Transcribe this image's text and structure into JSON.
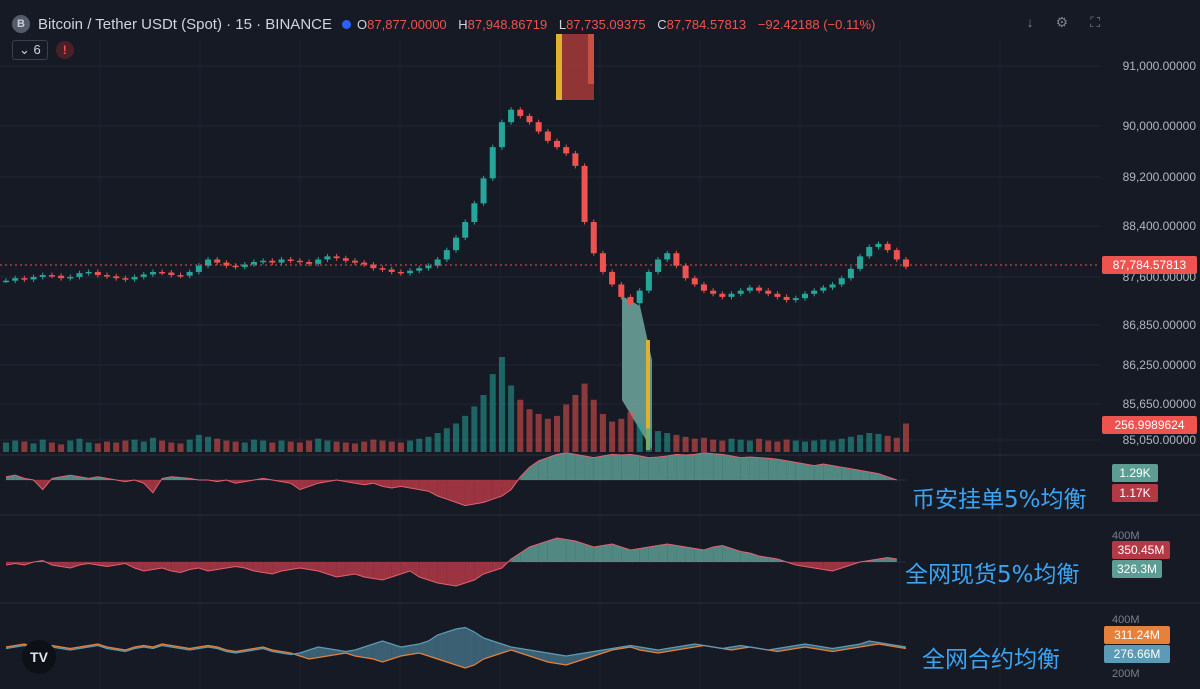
{
  "header": {
    "logo_letter": "B",
    "title": "Bitcoin / Tether USDt (Spot) · 15 · BINANCE",
    "o_label": "O",
    "o_value": "87,877.00000",
    "h_label": "H",
    "h_value": "87,948.86719",
    "l_label": "L",
    "l_value": "87,735.09375",
    "c_label": "C",
    "c_value": "87,784.57813",
    "change": "−92.42188 (−0.11%)",
    "indicators_count": "6",
    "alert_symbol": "!",
    "icon_down": "arrow-down-icon",
    "icon_settings": "settings-icon",
    "icon_fullscreen": "fullscreen-icon"
  },
  "colors": {
    "background": "#161a25",
    "up": "#26a69a",
    "down": "#ef5350",
    "fill_up": "#5c9e93",
    "fill_down": "#b33a45",
    "label_cn": "#3ba4f2",
    "futures_a": "#e5813a",
    "futures_b": "#5b9bb5"
  },
  "price_axis": {
    "ticks": [
      "91,000.00000",
      "90,000.00000",
      "89,200.00000",
      "88,400.00000",
      "87,600.00000",
      "86,850.00000",
      "86,250.00000",
      "85,650.00000",
      "85,050.00000"
    ],
    "current_price": "87,784.57813",
    "volume_label": "256.9989624"
  },
  "panes": {
    "binance": {
      "label_cn": "币安挂单5%均衡",
      "val_up": "1.29K",
      "val_down": "1.17K"
    },
    "spot": {
      "label_cn": "全网现货5%均衡",
      "tick_top": "400M",
      "val_down": "350.45M",
      "val_up": "326.3M"
    },
    "futures": {
      "label_cn": "全网合约均衡",
      "tick_top": "400M",
      "tick_bottom": "200M",
      "val_a": "311.24M",
      "val_b": "276.66M"
    }
  },
  "chart_data": {
    "type": "line",
    "title": "Bitcoin / Tether USDt (Spot) · 15 · BINANCE",
    "ylim": [
      84900,
      91400
    ],
    "close": [
      87560,
      87600,
      87580,
      87620,
      87650,
      87640,
      87600,
      87620,
      87680,
      87700,
      87650,
      87630,
      87600,
      87580,
      87620,
      87660,
      87700,
      87690,
      87650,
      87640,
      87700,
      87800,
      87900,
      87850,
      87800,
      87780,
      87820,
      87860,
      87880,
      87850,
      87900,
      87880,
      87860,
      87830,
      87900,
      87950,
      87920,
      87880,
      87850,
      87820,
      87760,
      87740,
      87700,
      87680,
      87720,
      87760,
      87800,
      87900,
      88050,
      88250,
      88500,
      88800,
      89200,
      89700,
      90100,
      90300,
      90200,
      90100,
      89950,
      89800,
      89700,
      89600,
      89400,
      88500,
      88000,
      87700,
      87500,
      87300,
      87200,
      87400,
      87700,
      87900,
      88000,
      87800,
      87600,
      87500,
      87400,
      87350,
      87300,
      87350,
      87400,
      87450,
      87400,
      87350,
      87300,
      87250,
      87280,
      87350,
      87400,
      87450,
      87500,
      87600,
      87750,
      87950,
      88100,
      88150,
      88050,
      87900,
      87784
    ],
    "volume": [
      0.1,
      0.12,
      0.11,
      0.09,
      0.13,
      0.1,
      0.08,
      0.12,
      0.14,
      0.1,
      0.09,
      0.11,
      0.1,
      0.12,
      0.13,
      0.11,
      0.15,
      0.12,
      0.1,
      0.09,
      0.13,
      0.18,
      0.16,
      0.14,
      0.12,
      0.11,
      0.1,
      0.13,
      0.12,
      0.1,
      0.12,
      0.11,
      0.1,
      0.12,
      0.14,
      0.12,
      0.11,
      0.1,
      0.09,
      0.11,
      0.13,
      0.12,
      0.11,
      0.1,
      0.12,
      0.14,
      0.16,
      0.2,
      0.25,
      0.3,
      0.38,
      0.48,
      0.6,
      0.82,
      1.0,
      0.7,
      0.55,
      0.45,
      0.4,
      0.35,
      0.38,
      0.5,
      0.6,
      0.72,
      0.55,
      0.4,
      0.32,
      0.35,
      0.42,
      0.3,
      0.25,
      0.22,
      0.2,
      0.18,
      0.16,
      0.14,
      0.15,
      0.13,
      0.12,
      0.14,
      0.13,
      0.12,
      0.14,
      0.12,
      0.11,
      0.13,
      0.12,
      0.11,
      0.12,
      0.13,
      0.12,
      0.14,
      0.16,
      0.18,
      0.2,
      0.19,
      0.17,
      0.15,
      0.3
    ],
    "binance_balance": [
      0.1,
      0.15,
      0.05,
      0.0,
      -0.3,
      0.05,
      0.1,
      0.15,
      0.1,
      0.05,
      0.1,
      0.05,
      0.0,
      -0.05,
      0.0,
      -0.1,
      -0.4,
      0.05,
      0.1,
      0.08,
      0.05,
      0.0,
      0.0,
      -0.05,
      0.0,
      -0.1,
      -0.05,
      0.0,
      0.05,
      0.0,
      -0.05,
      -0.1,
      -0.3,
      -0.2,
      -0.1,
      -0.05,
      0.0,
      -0.05,
      -0.1,
      -0.15,
      -0.1,
      -0.2,
      -0.25,
      -0.2,
      -0.25,
      -0.3,
      -0.35,
      -0.5,
      -0.6,
      -0.7,
      -0.8,
      -0.75,
      -0.7,
      -0.6,
      -0.5,
      -0.3,
      0.1,
      0.4,
      0.6,
      0.7,
      0.8,
      0.85,
      0.8,
      0.75,
      0.7,
      0.75,
      0.8,
      0.78,
      0.8,
      0.75,
      0.7,
      0.72,
      0.75,
      0.8,
      0.78,
      0.8,
      0.85,
      0.82,
      0.8,
      0.75,
      0.7,
      0.72,
      0.7,
      0.68,
      0.65,
      0.6,
      0.55,
      0.5,
      0.45,
      0.5,
      0.45,
      0.4,
      0.35,
      0.3,
      0.25,
      0.2,
      0.1,
      0.0
    ],
    "spot_balance": [
      -0.1,
      -0.05,
      -0.1,
      0.0,
      0.05,
      -0.1,
      -0.15,
      -0.2,
      -0.1,
      -0.05,
      -0.1,
      -0.15,
      -0.1,
      -0.05,
      -0.2,
      -0.3,
      -0.25,
      -0.2,
      -0.3,
      -0.35,
      -0.25,
      -0.2,
      -0.3,
      -0.25,
      -0.2,
      -0.15,
      -0.2,
      -0.3,
      -0.35,
      -0.4,
      -0.3,
      -0.25,
      -0.2,
      -0.25,
      -0.3,
      -0.4,
      -0.5,
      -0.45,
      -0.4,
      -0.5,
      -0.55,
      -0.6,
      -0.5,
      -0.4,
      -0.3,
      -0.5,
      -0.6,
      -0.7,
      -0.75,
      -0.8,
      -0.7,
      -0.6,
      -0.4,
      -0.3,
      -0.2,
      0.1,
      0.3,
      0.5,
      0.6,
      0.7,
      0.8,
      0.75,
      0.7,
      0.6,
      0.5,
      0.55,
      0.6,
      0.5,
      0.4,
      0.45,
      0.5,
      0.55,
      0.6,
      0.55,
      0.5,
      0.45,
      0.4,
      0.5,
      0.55,
      0.45,
      0.35,
      0.3,
      0.2,
      0.15,
      0.1,
      0.0,
      -0.1,
      -0.15,
      -0.2,
      -0.25,
      -0.3,
      -0.2,
      -0.1,
      0.0,
      0.05,
      0.1,
      0.15,
      0.1
    ],
    "futures_a": [
      0.1,
      0.15,
      0.2,
      0.1,
      0.05,
      0.15,
      0.1,
      0.05,
      0.1,
      0.15,
      0.2,
      0.1,
      0.05,
      0.0,
      0.1,
      0.15,
      0.1,
      0.2,
      0.15,
      0.1,
      0.05,
      0.1,
      0.15,
      0.1,
      0.0,
      -0.05,
      0.0,
      0.05,
      0.1,
      0.0,
      -0.05,
      -0.1,
      -0.2,
      -0.3,
      -0.25,
      -0.2,
      -0.15,
      -0.1,
      -0.2,
      -0.25,
      -0.3,
      -0.4,
      -0.3,
      -0.2,
      -0.15,
      -0.1,
      -0.2,
      -0.3,
      -0.4,
      -0.5,
      -0.6,
      -0.5,
      -0.3,
      -0.2,
      -0.1,
      0.0,
      -0.1,
      -0.2,
      -0.3,
      -0.4,
      -0.45,
      -0.5,
      -0.4,
      -0.3,
      -0.2,
      -0.1,
      0.0,
      0.05,
      0.1,
      0.0,
      -0.05,
      -0.1,
      -0.05,
      0.0,
      0.05,
      0.1,
      0.15,
      0.1,
      0.05,
      0.0,
      0.05,
      0.1,
      0.05,
      0.0,
      -0.05,
      0.0,
      0.05,
      0.1,
      0.05,
      0.0,
      -0.05,
      0.0,
      0.05,
      0.1,
      0.15,
      0.2,
      0.15,
      0.1,
      0.05
    ],
    "futures_b": [
      0.05,
      0.1,
      0.15,
      0.05,
      0.0,
      0.1,
      0.05,
      0.0,
      0.05,
      0.1,
      0.15,
      0.05,
      0.0,
      -0.05,
      0.05,
      0.1,
      0.05,
      0.15,
      0.1,
      0.05,
      0.0,
      0.05,
      0.1,
      0.05,
      -0.05,
      -0.1,
      -0.05,
      0.0,
      0.05,
      -0.05,
      -0.1,
      -0.15,
      -0.1,
      0.0,
      0.1,
      0.05,
      0.0,
      -0.05,
      0.0,
      0.1,
      0.2,
      0.3,
      0.2,
      0.1,
      0.15,
      0.2,
      0.3,
      0.5,
      0.6,
      0.7,
      0.75,
      0.6,
      0.4,
      0.3,
      0.2,
      0.1,
      0.05,
      0.0,
      -0.05,
      -0.1,
      -0.15,
      -0.2,
      -0.15,
      -0.1,
      -0.05,
      0.0,
      0.05,
      0.1,
      0.15,
      0.1,
      0.05,
      0.0,
      0.05,
      0.1,
      0.15,
      0.2,
      0.15,
      0.1,
      0.05,
      0.1,
      0.15,
      0.1,
      0.05,
      0.0,
      0.05,
      0.1,
      0.15,
      0.2,
      0.15,
      0.1,
      0.05,
      0.1,
      0.15,
      0.2,
      0.3,
      0.25,
      0.2,
      0.15,
      0.1
    ]
  }
}
